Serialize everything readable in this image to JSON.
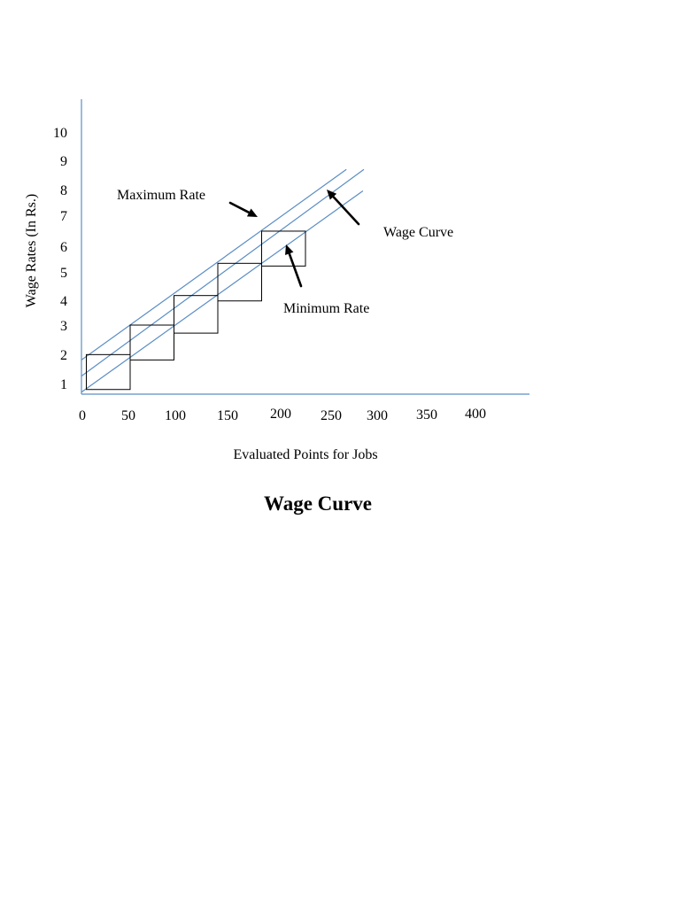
{
  "chart_data": {
    "type": "line",
    "title": "Wage Curve",
    "xlabel": "Evaluated Points for Jobs",
    "ylabel": "Wage Rates (In Rs.)",
    "x_ticks": [
      "0",
      "50",
      "100",
      "150",
      "200",
      "250",
      "300",
      "350",
      "400"
    ],
    "y_ticks": [
      "1",
      "2",
      "3",
      "4",
      "5",
      "6",
      "7",
      "8",
      "9",
      "10"
    ],
    "series": [
      {
        "name": "Maximum Rate",
        "x": [
          0,
          272
        ],
        "y": [
          2.0,
          9.1
        ]
      },
      {
        "name": "Wage Curve",
        "x": [
          0,
          290
        ],
        "y": [
          1.4,
          9.1
        ]
      },
      {
        "name": "Minimum Rate",
        "x": [
          0,
          289
        ],
        "y": [
          0.8,
          8.3
        ]
      }
    ],
    "rate_ranges": [
      {
        "x": [
          5,
          50
        ],
        "y": [
          0.9,
          2.2
        ]
      },
      {
        "x": [
          50,
          95
        ],
        "y": [
          2.0,
          3.3
        ]
      },
      {
        "x": [
          95,
          140
        ],
        "y": [
          3.0,
          4.4
        ]
      },
      {
        "x": [
          140,
          185
        ],
        "y": [
          4.2,
          5.6
        ]
      },
      {
        "x": [
          185,
          230
        ],
        "y": [
          5.5,
          6.8
        ]
      }
    ],
    "annotations": [
      {
        "id": "max",
        "text": "Maximum Rate",
        "target_series": 0
      },
      {
        "id": "curve",
        "text": "Wage Curve",
        "target_series": 1
      },
      {
        "id": "min",
        "text": "Minimum Rate",
        "target_series": 2
      }
    ],
    "line_color": "#5b8ec4",
    "box_color": "#000000",
    "grid": false,
    "legend": "none"
  }
}
